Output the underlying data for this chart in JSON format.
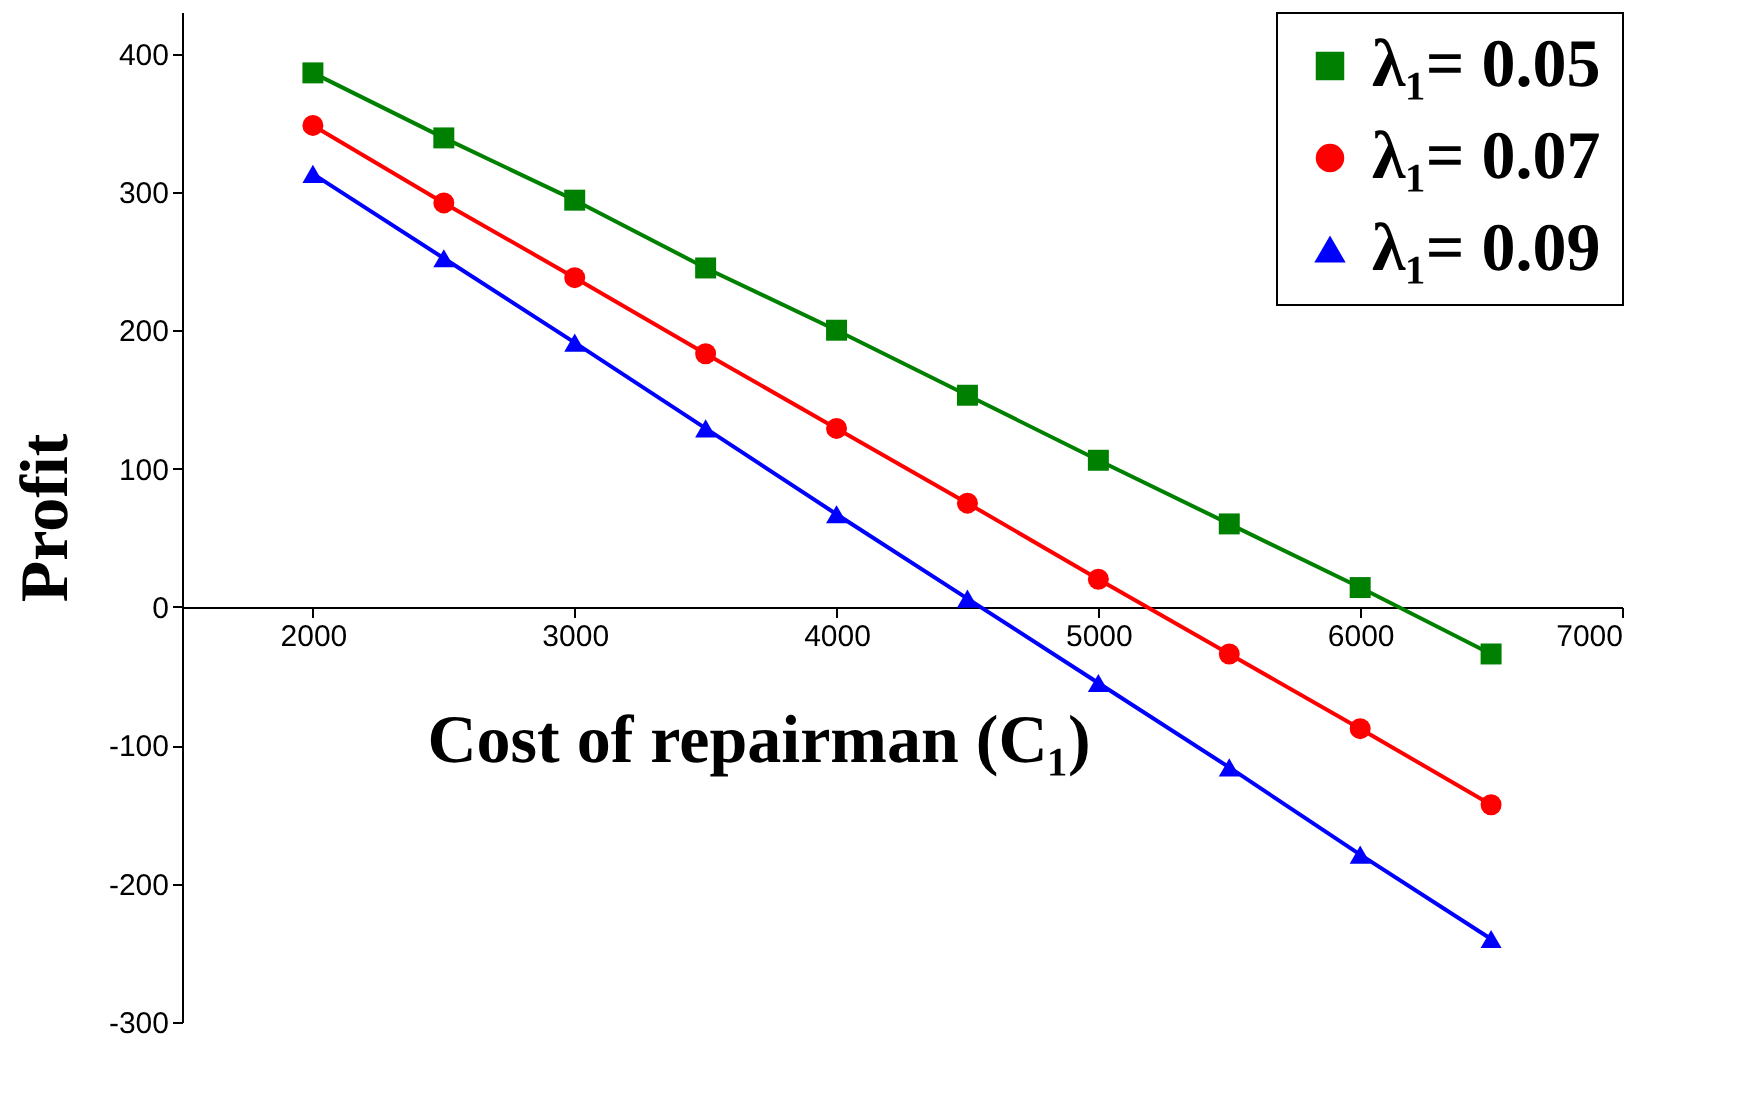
{
  "chart_data": {
    "type": "line",
    "xlabel": "Cost of repairman (C₁)",
    "ylabel": "Profit",
    "x": [
      2000,
      2500,
      3000,
      3500,
      4000,
      4500,
      5000,
      5500,
      6000,
      6500
    ],
    "series": [
      {
        "name": "λ₁= 0.05",
        "color": "#008000",
        "marker": "square",
        "values": [
          386,
          339,
          294,
          245,
          200,
          153,
          106,
          60,
          14,
          -34
        ]
      },
      {
        "name": "λ₁= 0.07",
        "color": "#ff0000",
        "marker": "circle",
        "values": [
          348,
          292,
          238,
          183,
          129,
          75,
          20,
          -34,
          -88,
          -143
        ]
      },
      {
        "name": "λ₁= 0.09",
        "color": "#0000ff",
        "marker": "triangle",
        "values": [
          313,
          252,
          191,
          129,
          67,
          6,
          -55,
          -116,
          -179,
          -240
        ]
      }
    ],
    "xlim": [
      1500,
      7000
    ],
    "ylim": [
      -300,
      430
    ],
    "xticks": [
      2000,
      3000,
      4000,
      5000,
      6000,
      7000
    ],
    "yticks": [
      -300,
      -200,
      -100,
      0,
      100,
      200,
      300,
      400
    ],
    "grid": false,
    "legend": "top right",
    "line_style": "solid"
  }
}
